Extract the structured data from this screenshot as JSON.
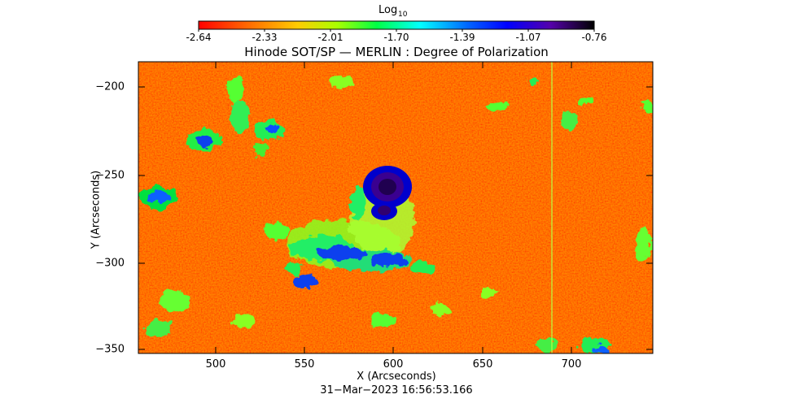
{
  "colorbar": {
    "label_base": "Log",
    "label_sub": "10",
    "ticks": [
      "-2.64",
      "-2.33",
      "-2.01",
      "-1.70",
      "-1.39",
      "-1.07",
      "-0.76"
    ],
    "colormap": "rainbow",
    "colors": [
      "#ff0000",
      "#ff8800",
      "#ffff00",
      "#00ff00",
      "#00ffff",
      "#0000ff",
      "#7700aa",
      "#000000"
    ]
  },
  "plot": {
    "title": "Hinode SOT/SP — MERLIN : Degree of Polarization",
    "x_axis_label": "X (Arcseconds)",
    "y_axis_label": "Y (Arcseconds)",
    "x_ticks": [
      "500",
      "550",
      "600",
      "650",
      "700"
    ],
    "y_ticks": [
      "−200",
      "−250",
      "−300",
      "−350"
    ],
    "timestamp": "31−Mar−2023 16:56:53.166"
  }
}
